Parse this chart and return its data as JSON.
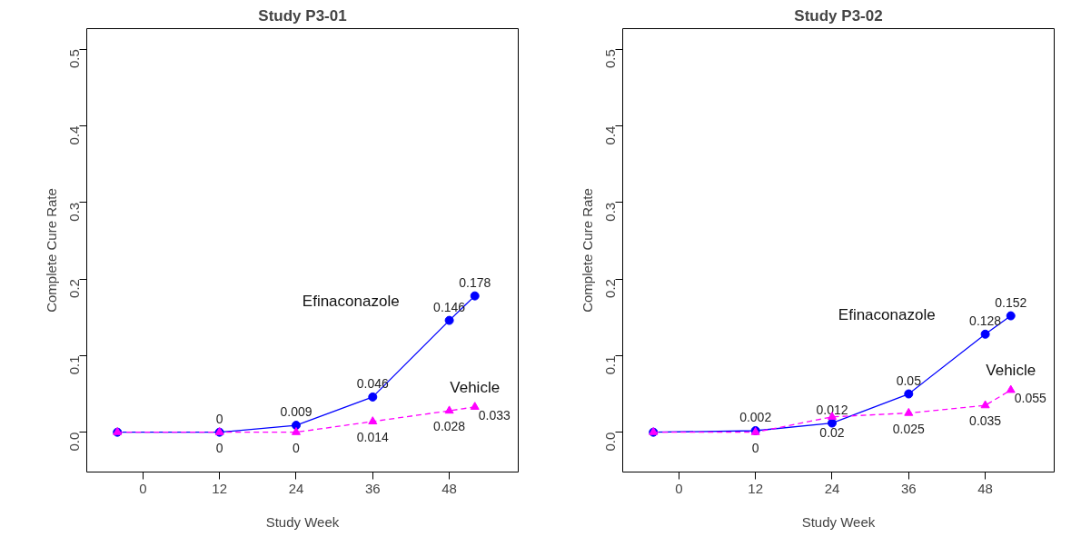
{
  "chart_data": [
    {
      "type": "line",
      "title": "Study P3-01",
      "xlabel": "Study Week",
      "ylabel": "Complete Cure Rate",
      "x": [
        -4,
        12,
        24,
        36,
        48,
        52
      ],
      "xlim": [
        -8.8,
        58.8
      ],
      "ylim": [
        -0.052,
        0.527
      ],
      "xticks": [
        0,
        12,
        24,
        36,
        48
      ],
      "yticks": [
        {
          "value": 0,
          "label": "0.0"
        },
        {
          "value": 0.1,
          "label": "0.1"
        },
        {
          "value": 0.2,
          "label": "0.2"
        },
        {
          "value": 0.3,
          "label": "0.3"
        },
        {
          "value": 0.4,
          "label": "0.4"
        },
        {
          "value": 0.5,
          "label": "0.5"
        }
      ],
      "grid": false,
      "series": [
        {
          "name": "Efinaconazole",
          "color": "#0000ff",
          "marker": "circle",
          "line_style": "solid",
          "values": [
            0,
            0,
            0.009,
            0.046,
            0.146,
            0.178
          ],
          "value_labels": [
            null,
            "0",
            "0.009",
            "0.046",
            "0.146",
            "0.178"
          ]
        },
        {
          "name": "Vehicle",
          "color": "#ff00ff",
          "marker": "triangle",
          "line_style": "dashed",
          "values": [
            0,
            0,
            0,
            0.014,
            0.028,
            0.033
          ],
          "value_labels": [
            null,
            "0",
            "0",
            "0.014",
            "0.028",
            "0.033"
          ]
        }
      ]
    },
    {
      "type": "line",
      "title": "Study P3-02",
      "xlabel": "Study Week",
      "ylabel": "Complete Cure Rate",
      "x": [
        -4,
        12,
        24,
        36,
        48,
        52
      ],
      "xlim": [
        -8.8,
        58.8
      ],
      "ylim": [
        -0.052,
        0.527
      ],
      "xticks": [
        0,
        12,
        24,
        36,
        48
      ],
      "yticks": [
        {
          "value": 0,
          "label": "0.0"
        },
        {
          "value": 0.1,
          "label": "0.1"
        },
        {
          "value": 0.2,
          "label": "0.2"
        },
        {
          "value": 0.3,
          "label": "0.3"
        },
        {
          "value": 0.4,
          "label": "0.4"
        },
        {
          "value": 0.5,
          "label": "0.5"
        }
      ],
      "grid": false,
      "series": [
        {
          "name": "Efinaconazole",
          "color": "#0000ff",
          "marker": "circle",
          "line_style": "solid",
          "values": [
            0,
            0.002,
            0.012,
            0.05,
            0.128,
            0.152
          ],
          "value_labels": [
            null,
            "0.002",
            "0.012",
            "0.05",
            "0.128",
            "0.152"
          ]
        },
        {
          "name": "Vehicle",
          "color": "#ff00ff",
          "marker": "triangle",
          "line_style": "dashed",
          "values": [
            0,
            0,
            0.02,
            0.025,
            0.035,
            0.055
          ],
          "value_labels": [
            null,
            "0",
            "0.02",
            "0.025",
            "0.035",
            "0.055"
          ]
        }
      ]
    }
  ]
}
